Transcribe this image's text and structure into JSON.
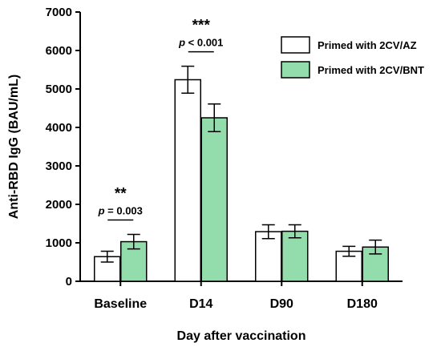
{
  "chart_data": {
    "type": "bar",
    "title": "",
    "xlabel": "Day after vaccination",
    "ylabel": "Anti-RBD IgG (BAU/mL)",
    "ylim": [
      0,
      7000
    ],
    "yticks": [
      0,
      1000,
      2000,
      3000,
      4000,
      5000,
      6000,
      7000
    ],
    "categories": [
      "Baseline",
      "D14",
      "D90",
      "D180"
    ],
    "series": [
      {
        "name": "Primed with 2CV/AZ",
        "color": "#ffffff",
        "values": [
          640,
          5240,
          1290,
          780
        ],
        "error": [
          140,
          350,
          180,
          130
        ]
      },
      {
        "name": "Primed with 2CV/BNT",
        "color": "#93dcab",
        "values": [
          1030,
          4250,
          1300,
          890
        ],
        "error": [
          190,
          360,
          170,
          180
        ]
      }
    ],
    "legend_position": "top-right",
    "grid": false,
    "annotations": [
      {
        "category": "Baseline",
        "stars": "**",
        "p_symbol": "p",
        "p_text": " = 0.003"
      },
      {
        "category": "D14",
        "stars": "***",
        "p_symbol": "p",
        "p_text": " < 0.001"
      }
    ]
  }
}
